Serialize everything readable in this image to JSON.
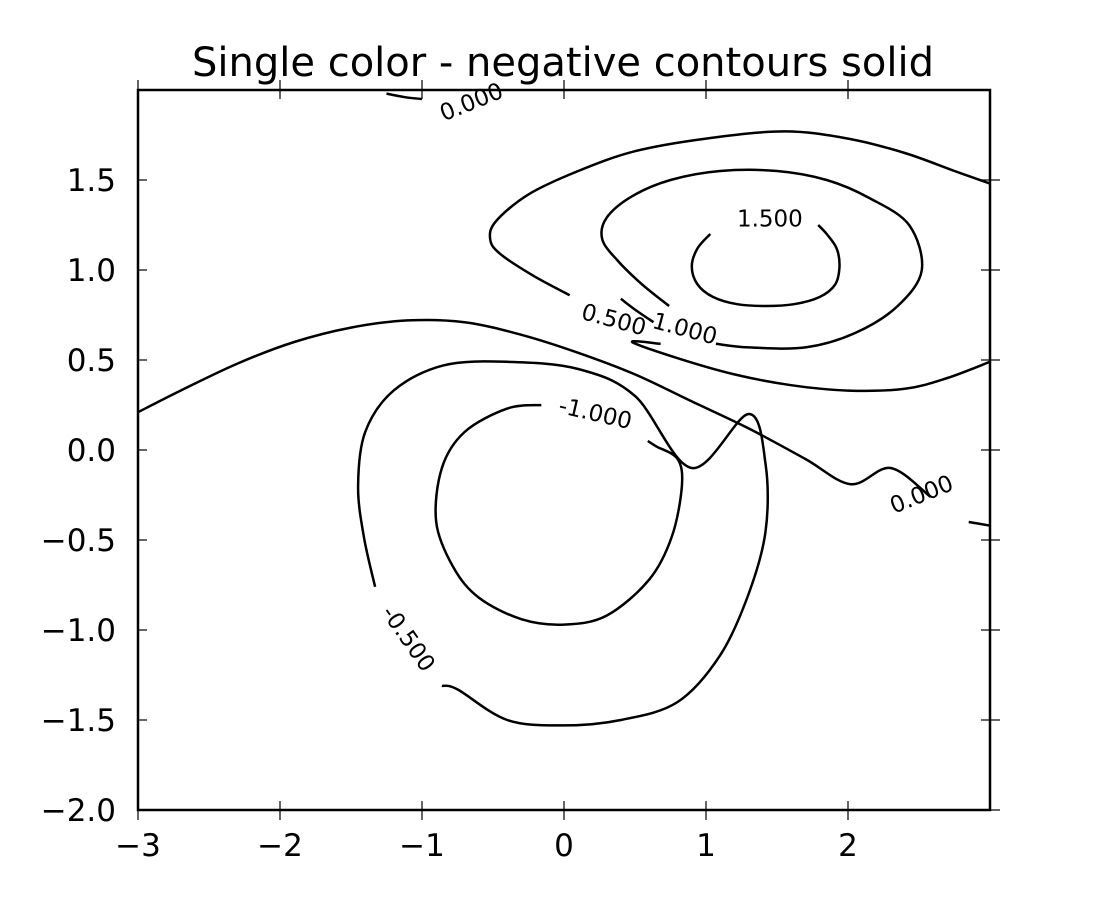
{
  "chart_data": {
    "type": "contour",
    "title": "Single color - negative contours solid",
    "xlabel": "",
    "ylabel": "",
    "xlim": [
      -3,
      3
    ],
    "ylim": [
      -2,
      2
    ],
    "x_ticks": [
      -3,
      -2,
      -1,
      0,
      1,
      2
    ],
    "x_tick_labels": [
      "−3",
      "−2",
      "−1",
      "0",
      "1",
      "2"
    ],
    "y_ticks": [
      1.5,
      1.0,
      0.5,
      0.0,
      -0.5,
      -1.0,
      -1.5,
      -2.0
    ],
    "y_tick_labels": [
      "1.5",
      "1.0",
      "0.5",
      "0.0",
      "−0.5",
      "−1.0",
      "−1.5",
      "−2.0"
    ],
    "line_color": "#000000",
    "grid": false,
    "levels": [
      {
        "level": 1.5,
        "label_text": "1.500",
        "segments": [
          [
            [
              1.03,
              1.2
            ],
            [
              0.94,
              1.12
            ],
            [
              0.9,
              1.02
            ],
            [
              0.94,
              0.92
            ],
            [
              1.05,
              0.85
            ],
            [
              1.22,
              0.81
            ],
            [
              1.42,
              0.8
            ],
            [
              1.62,
              0.81
            ],
            [
              1.8,
              0.85
            ],
            [
              1.91,
              0.92
            ],
            [
              1.94,
              1.02
            ],
            [
              1.92,
              1.12
            ],
            [
              1.85,
              1.2
            ],
            [
              1.79,
              1.25
            ]
          ]
        ],
        "label_pos": [
          1.45,
          1.28
        ],
        "label_angle_deg": 0
      },
      {
        "level": 1.0,
        "label_text": "1.000",
        "segments": [
          [
            [
              0.74,
              0.8
            ],
            [
              0.55,
              0.92
            ],
            [
              0.38,
              1.05
            ],
            [
              0.27,
              1.17
            ],
            [
              0.3,
              1.29
            ],
            [
              0.48,
              1.41
            ],
            [
              0.75,
              1.5
            ],
            [
              1.1,
              1.55
            ],
            [
              1.5,
              1.55
            ],
            [
              1.85,
              1.5
            ],
            [
              2.15,
              1.4
            ],
            [
              2.43,
              1.25
            ],
            [
              2.52,
              1.0
            ],
            [
              2.35,
              0.8
            ],
            [
              2.05,
              0.65
            ],
            [
              1.7,
              0.57
            ],
            [
              1.3,
              0.57
            ],
            [
              1.07,
              0.59
            ]
          ],
          [
            [
              0.63,
              0.71
            ],
            [
              0.5,
              0.78
            ],
            [
              0.4,
              0.84
            ]
          ]
        ],
        "label_pos": [
          0.85,
          0.67
        ],
        "label_angle_deg": 15
      },
      {
        "level": 0.5,
        "label_text": "0.500",
        "segments": [
          [
            [
              0.04,
              0.86
            ],
            [
              -0.22,
              0.97
            ],
            [
              -0.45,
              1.09
            ],
            [
              -0.52,
              1.17
            ],
            [
              -0.48,
              1.27
            ],
            [
              -0.25,
              1.42
            ],
            [
              0.1,
              1.55
            ],
            [
              0.5,
              1.66
            ],
            [
              1.0,
              1.73
            ],
            [
              1.55,
              1.77
            ],
            [
              2.0,
              1.73
            ],
            [
              2.4,
              1.65
            ],
            [
              2.75,
              1.55
            ],
            [
              3.0,
              1.48
            ]
          ],
          [
            [
              3.0,
              0.49
            ],
            [
              2.7,
              0.4
            ],
            [
              2.4,
              0.34
            ],
            [
              2.0,
              0.33
            ],
            [
              1.6,
              0.36
            ],
            [
              1.2,
              0.42
            ],
            [
              0.8,
              0.51
            ],
            [
              0.48,
              0.6
            ],
            [
              0.68,
              0.59
            ]
          ]
        ],
        "label_pos": [
          0.35,
          0.72
        ],
        "label_angle_deg": 15
      },
      {
        "level": 0.0,
        "label_text": "0.000",
        "segments": [
          [
            [
              -3.0,
              0.21
            ],
            [
              -2.7,
              0.33
            ],
            [
              -2.3,
              0.48
            ],
            [
              -1.9,
              0.6
            ],
            [
              -1.5,
              0.68
            ],
            [
              -1.1,
              0.72
            ],
            [
              -0.7,
              0.71
            ],
            [
              -0.3,
              0.64
            ],
            [
              0.1,
              0.54
            ],
            [
              0.5,
              0.42
            ],
            [
              0.9,
              0.27
            ],
            [
              1.3,
              0.12
            ],
            [
              1.7,
              -0.05
            ],
            [
              2.02,
              -0.19
            ],
            [
              2.3,
              -0.1
            ],
            [
              2.58,
              -0.26
            ]
          ],
          [
            [
              2.85,
              -0.4
            ],
            [
              3.0,
              -0.42
            ]
          ],
          [
            [
              -1.25,
              1.98
            ],
            [
              -1.12,
              1.96
            ],
            [
              -1.0,
              1.95
            ]
          ]
        ],
        "label_pos": [
          2.52,
          -0.25
        ],
        "label_pos_2": [
          -0.65,
          1.93
        ],
        "label_angle_deg": -22
      },
      {
        "level": -0.5,
        "label_text": "-0.500",
        "segments": [
          [
            [
              -1.33,
              -0.76
            ],
            [
              -1.41,
              -0.48
            ],
            [
              -1.45,
              -0.2
            ],
            [
              -1.4,
              0.1
            ],
            [
              -1.2,
              0.33
            ],
            [
              -0.85,
              0.47
            ],
            [
              -0.4,
              0.49
            ],
            [
              0.1,
              0.45
            ],
            [
              0.5,
              0.3
            ],
            [
              0.9,
              -0.1
            ],
            [
              1.3,
              0.2
            ],
            [
              1.42,
              -0.08
            ],
            [
              1.42,
              -0.45
            ],
            [
              1.3,
              -0.8
            ],
            [
              1.1,
              -1.14
            ],
            [
              0.8,
              -1.4
            ],
            [
              0.4,
              -1.5
            ],
            [
              0.0,
              -1.53
            ],
            [
              -0.4,
              -1.5
            ],
            [
              -0.75,
              -1.33
            ],
            [
              -0.86,
              -1.31
            ]
          ]
        ],
        "label_pos": [
          -1.1,
          -1.05
        ],
        "label_angle_deg": 55
      },
      {
        "level": -1.0,
        "label_text": "-1.000",
        "segments": [
          [
            [
              -0.16,
              0.25
            ],
            [
              -0.4,
              0.23
            ],
            [
              -0.7,
              0.1
            ],
            [
              -0.86,
              -0.1
            ],
            [
              -0.9,
              -0.4
            ],
            [
              -0.78,
              -0.65
            ],
            [
              -0.6,
              -0.82
            ],
            [
              -0.3,
              -0.94
            ],
            [
              0.0,
              -0.97
            ],
            [
              0.3,
              -0.92
            ],
            [
              0.6,
              -0.72
            ],
            [
              0.76,
              -0.48
            ],
            [
              0.83,
              -0.2
            ],
            [
              0.8,
              -0.05
            ],
            [
              0.65,
              0.02
            ],
            [
              0.59,
              0.05
            ]
          ]
        ],
        "label_pos": [
          0.22,
          0.2
        ],
        "label_angle_deg": 13
      }
    ]
  }
}
